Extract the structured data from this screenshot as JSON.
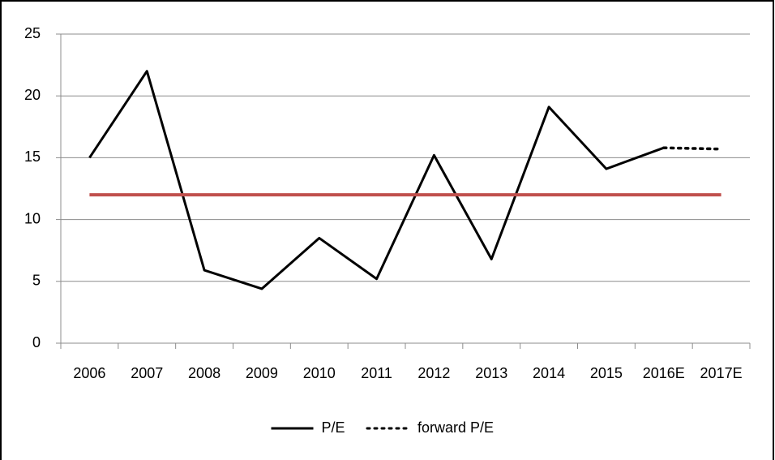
{
  "chart_data": {
    "type": "line",
    "categories": [
      "2006",
      "2007",
      "2008",
      "2009",
      "2010",
      "2011",
      "2012",
      "2013",
      "2014",
      "2015",
      "2016E",
      "2017E"
    ],
    "series": [
      {
        "name": "P/E",
        "color": "#000000",
        "dash": "solid",
        "values": [
          15,
          22,
          5.9,
          4.4,
          8.5,
          5.2,
          15.2,
          6.8,
          19.1,
          14.1,
          15.8,
          null
        ]
      },
      {
        "name": "forward P/E",
        "color": "#000000",
        "dash": "dot",
        "values": [
          null,
          null,
          null,
          null,
          null,
          null,
          null,
          null,
          null,
          null,
          15.8,
          15.7
        ]
      },
      {
        "color": "#c0504d",
        "dash": "solid",
        "values": [
          12,
          12,
          12,
          12,
          12,
          12,
          12,
          12,
          12,
          12,
          12,
          12
        ]
      }
    ],
    "ylim": [
      0,
      25
    ],
    "yticks": [
      0,
      5,
      10,
      15,
      20,
      25
    ],
    "grid": true,
    "legend": "bottom"
  }
}
